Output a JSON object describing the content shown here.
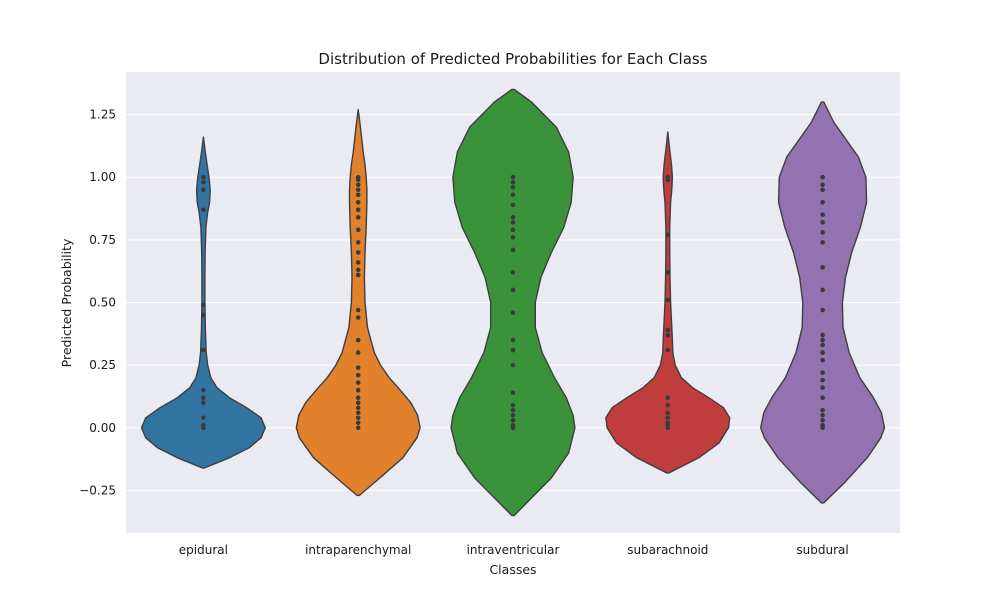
{
  "chart_data": {
    "type": "violin",
    "title": "Distribution of Predicted Probabilities for Each Class",
    "xlabel": "Classes",
    "ylabel": "Predicted Probability",
    "ylim": [
      -0.42,
      1.42
    ],
    "yticks": [
      -0.25,
      0.0,
      0.25,
      0.5,
      0.75,
      1.0,
      1.25
    ],
    "ytick_labels": [
      "−0.25",
      "0.00",
      "0.25",
      "0.50",
      "0.75",
      "1.00",
      "1.25"
    ],
    "grid": true,
    "background": "#eaeaf2",
    "categories": [
      "epidural",
      "intraparenchymal",
      "intraventricular",
      "subarachnoid",
      "subdural"
    ],
    "colors": [
      "#3274a1",
      "#e1812c",
      "#3a923a",
      "#c03d3e",
      "#9372b2"
    ],
    "series": [
      {
        "category": "epidural",
        "range": [
          -0.16,
          1.16
        ],
        "profile": [
          [
            -0.16,
            0.02
          ],
          [
            -0.12,
            0.42
          ],
          [
            -0.08,
            0.74
          ],
          [
            -0.04,
            0.93
          ],
          [
            0.0,
            1.0
          ],
          [
            0.04,
            0.93
          ],
          [
            0.08,
            0.7
          ],
          [
            0.12,
            0.42
          ],
          [
            0.16,
            0.22
          ],
          [
            0.2,
            0.12
          ],
          [
            0.25,
            0.07
          ],
          [
            0.3,
            0.045
          ],
          [
            0.4,
            0.03
          ],
          [
            0.5,
            0.025
          ],
          [
            0.6,
            0.025
          ],
          [
            0.7,
            0.028
          ],
          [
            0.8,
            0.04
          ],
          [
            0.86,
            0.07
          ],
          [
            0.9,
            0.1
          ],
          [
            0.95,
            0.11
          ],
          [
            1.0,
            0.09
          ],
          [
            1.05,
            0.06
          ],
          [
            1.1,
            0.03
          ],
          [
            1.16,
            0.0
          ]
        ],
        "points": [
          0.0,
          0.01,
          0.04,
          0.1,
          0.12,
          0.15,
          0.31,
          0.45,
          0.49,
          0.87,
          0.95,
          0.98,
          1.0
        ]
      },
      {
        "category": "intraparenchymal",
        "range": [
          -0.27,
          1.27
        ],
        "profile": [
          [
            -0.27,
            0.02
          ],
          [
            -0.2,
            0.35
          ],
          [
            -0.12,
            0.72
          ],
          [
            -0.04,
            0.95
          ],
          [
            0.0,
            1.0
          ],
          [
            0.05,
            0.96
          ],
          [
            0.1,
            0.85
          ],
          [
            0.15,
            0.68
          ],
          [
            0.2,
            0.5
          ],
          [
            0.25,
            0.36
          ],
          [
            0.3,
            0.26
          ],
          [
            0.4,
            0.15
          ],
          [
            0.5,
            0.11
          ],
          [
            0.6,
            0.1
          ],
          [
            0.7,
            0.11
          ],
          [
            0.8,
            0.13
          ],
          [
            0.9,
            0.14
          ],
          [
            0.95,
            0.14
          ],
          [
            1.0,
            0.13
          ],
          [
            1.05,
            0.11
          ],
          [
            1.1,
            0.08
          ],
          [
            1.2,
            0.035
          ],
          [
            1.27,
            0.0
          ]
        ],
        "points": [
          0.0,
          0.02,
          0.04,
          0.06,
          0.08,
          0.1,
          0.12,
          0.15,
          0.18,
          0.21,
          0.24,
          0.3,
          0.35,
          0.44,
          0.47,
          0.61,
          0.63,
          0.66,
          0.7,
          0.74,
          0.79,
          0.84,
          0.87,
          0.9,
          0.93,
          0.95,
          0.97,
          0.99,
          1.0
        ]
      },
      {
        "category": "intraventricular",
        "range": [
          -0.35,
          1.35
        ],
        "profile": [
          [
            -0.35,
            0.02
          ],
          [
            -0.28,
            0.3
          ],
          [
            -0.2,
            0.62
          ],
          [
            -0.1,
            0.9
          ],
          [
            0.0,
            1.0
          ],
          [
            0.05,
            0.97
          ],
          [
            0.12,
            0.86
          ],
          [
            0.2,
            0.67
          ],
          [
            0.3,
            0.47
          ],
          [
            0.4,
            0.36
          ],
          [
            0.5,
            0.36
          ],
          [
            0.6,
            0.45
          ],
          [
            0.7,
            0.62
          ],
          [
            0.8,
            0.82
          ],
          [
            0.9,
            0.94
          ],
          [
            1.0,
            0.97
          ],
          [
            1.1,
            0.9
          ],
          [
            1.2,
            0.7
          ],
          [
            1.3,
            0.3
          ],
          [
            1.35,
            0.02
          ]
        ],
        "points": [
          0.0,
          0.01,
          0.03,
          0.05,
          0.07,
          0.09,
          0.14,
          0.25,
          0.31,
          0.35,
          0.46,
          0.55,
          0.62,
          0.71,
          0.76,
          0.79,
          0.82,
          0.84,
          0.89,
          0.93,
          0.96,
          0.98,
          1.0
        ]
      },
      {
        "category": "subarachnoid",
        "range": [
          -0.18,
          1.18
        ],
        "profile": [
          [
            -0.18,
            0.02
          ],
          [
            -0.12,
            0.5
          ],
          [
            -0.06,
            0.83
          ],
          [
            0.0,
            0.98
          ],
          [
            0.04,
            1.0
          ],
          [
            0.08,
            0.9
          ],
          [
            0.12,
            0.66
          ],
          [
            0.16,
            0.4
          ],
          [
            0.2,
            0.22
          ],
          [
            0.25,
            0.12
          ],
          [
            0.3,
            0.08
          ],
          [
            0.35,
            0.075
          ],
          [
            0.4,
            0.065
          ],
          [
            0.5,
            0.045
          ],
          [
            0.6,
            0.035
          ],
          [
            0.7,
            0.03
          ],
          [
            0.8,
            0.03
          ],
          [
            0.9,
            0.045
          ],
          [
            0.95,
            0.065
          ],
          [
            1.0,
            0.075
          ],
          [
            1.05,
            0.06
          ],
          [
            1.1,
            0.035
          ],
          [
            1.18,
            0.0
          ]
        ],
        "points": [
          0.0,
          0.01,
          0.02,
          0.04,
          0.06,
          0.09,
          0.12,
          0.31,
          0.37,
          0.39,
          0.51,
          0.62,
          0.77,
          0.99,
          1.0
        ]
      },
      {
        "category": "subdural",
        "range": [
          -0.3,
          1.3
        ],
        "profile": [
          [
            -0.3,
            0.02
          ],
          [
            -0.22,
            0.35
          ],
          [
            -0.12,
            0.72
          ],
          [
            -0.04,
            0.94
          ],
          [
            0.0,
            1.0
          ],
          [
            0.06,
            0.95
          ],
          [
            0.12,
            0.82
          ],
          [
            0.2,
            0.6
          ],
          [
            0.3,
            0.43
          ],
          [
            0.4,
            0.33
          ],
          [
            0.5,
            0.32
          ],
          [
            0.6,
            0.37
          ],
          [
            0.7,
            0.47
          ],
          [
            0.8,
            0.61
          ],
          [
            0.9,
            0.71
          ],
          [
            1.0,
            0.7
          ],
          [
            1.08,
            0.58
          ],
          [
            1.15,
            0.38
          ],
          [
            1.22,
            0.18
          ],
          [
            1.3,
            0.02
          ]
        ],
        "points": [
          0.0,
          0.01,
          0.03,
          0.05,
          0.07,
          0.12,
          0.16,
          0.19,
          0.22,
          0.27,
          0.3,
          0.33,
          0.35,
          0.37,
          0.47,
          0.55,
          0.64,
          0.74,
          0.78,
          0.82,
          0.85,
          0.9,
          0.95,
          0.97,
          1.0
        ]
      }
    ]
  }
}
